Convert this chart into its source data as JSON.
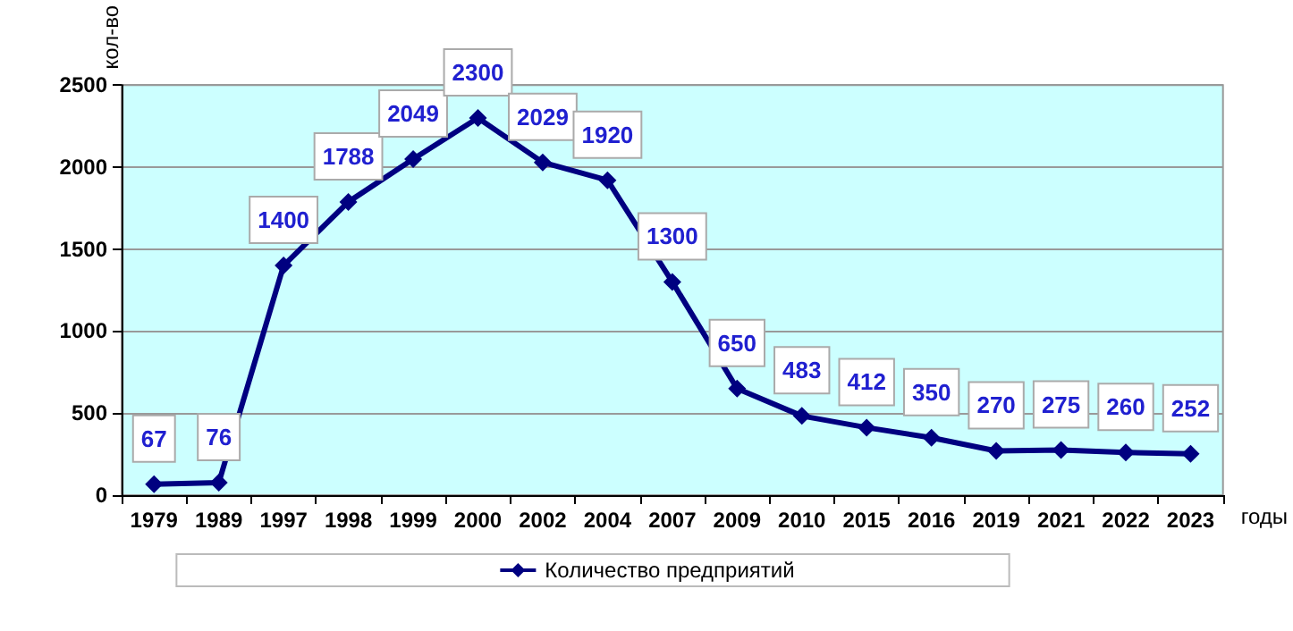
{
  "chart_data": {
    "type": "line",
    "xlabel": "годы",
    "ylabel": "кол-во",
    "categories": [
      "1979",
      "1989",
      "1997",
      "1998",
      "1999",
      "2000",
      "2002",
      "2004",
      "2007",
      "2009",
      "2010",
      "2015",
      "2016",
      "2019",
      "2021",
      "2022",
      "2023"
    ],
    "series": [
      {
        "name": "Количество предприятий",
        "color": "#000080",
        "values": [
          67,
          76,
          1400,
          1788,
          2049,
          2300,
          2029,
          1920,
          1300,
          650,
          483,
          412,
          350,
          270,
          275,
          260,
          252
        ]
      }
    ],
    "ylim": [
      0,
      2500
    ],
    "yticks": [
      0,
      500,
      1000,
      1500,
      2000,
      2500
    ],
    "grid": "y",
    "legend": "bottom",
    "marker": "diamond",
    "line_style": "solid",
    "data_labels": true
  }
}
